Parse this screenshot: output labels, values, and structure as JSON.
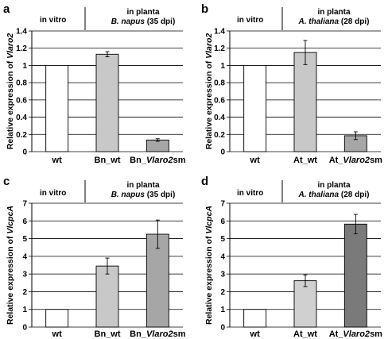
{
  "chart_data": [
    {
      "type": "bar",
      "panel": "a",
      "header": {
        "left": "in vitro",
        "right_line1": "in planta",
        "right_line2_italic": "B. napus",
        "right_line2_rest": " (35 dpi)"
      },
      "ylabel": {
        "plain": "Relative expression of ",
        "italic": "Vlaro2"
      },
      "ylim": [
        0,
        1.4
      ],
      "yticks": [
        "0",
        "0.2",
        "0.4",
        "0.6",
        "0.8",
        "1",
        "1.2",
        "1.4"
      ],
      "grid": true,
      "categories": [
        {
          "plain": "wt",
          "italic": "",
          "suffix": ""
        },
        {
          "plain": "Bn_wt",
          "italic": "",
          "suffix": ""
        },
        {
          "plain": "Bn_",
          "italic": "Vlaro2",
          "suffix": "sm"
        }
      ],
      "values": [
        1.0,
        1.13,
        0.135
      ],
      "errors": [
        0,
        0.03,
        0.015
      ],
      "colors": [
        "#ffffff",
        "#c8c8c8",
        "#a6a6a6"
      ]
    },
    {
      "type": "bar",
      "panel": "b",
      "header": {
        "left": "in vitro",
        "right_line1": "in planta",
        "right_line2_italic": "A. thaliana",
        "right_line2_rest": " (28 dpi)"
      },
      "ylabel": {
        "plain": "Relative expression of ",
        "italic": "Vlaro2"
      },
      "ylim": [
        0,
        1.4
      ],
      "yticks": [
        "0",
        "0.2",
        "0.4",
        "0.6",
        "0.8",
        "1",
        "1.2",
        "1.4"
      ],
      "grid": true,
      "categories": [
        {
          "plain": "wt",
          "italic": "",
          "suffix": ""
        },
        {
          "plain": "At_wt",
          "italic": "",
          "suffix": ""
        },
        {
          "plain": "At_",
          "italic": "Vlaro2",
          "suffix": "sm"
        }
      ],
      "values": [
        1.0,
        1.15,
        0.185
      ],
      "errors": [
        0,
        0.14,
        0.045
      ],
      "colors": [
        "#ffffff",
        "#c8c8c8",
        "#a6a6a6"
      ]
    },
    {
      "type": "bar",
      "panel": "c",
      "header": {
        "left": "in vitro",
        "right_line1": "in planta",
        "right_line2_italic": "B. napus",
        "right_line2_rest": " (35 dpi)"
      },
      "ylabel": {
        "plain": "Relative expression of ",
        "italic": "VlcpcA"
      },
      "ylim": [
        0,
        7
      ],
      "yticks": [
        "0",
        "1",
        "2",
        "3",
        "4",
        "5",
        "6",
        "7"
      ],
      "grid": true,
      "categories": [
        {
          "plain": "wt",
          "italic": "",
          "suffix": ""
        },
        {
          "plain": "Bn_wt",
          "italic": "",
          "suffix": ""
        },
        {
          "plain": "Bn_",
          "italic": "Vlaro2",
          "suffix": "sm"
        }
      ],
      "values": [
        1.0,
        3.45,
        5.25
      ],
      "errors": [
        0,
        0.45,
        0.8
      ],
      "colors": [
        "#ffffff",
        "#c8c8c8",
        "#a6a6a6"
      ]
    },
    {
      "type": "bar",
      "panel": "d",
      "header": {
        "left": "in vitro",
        "right_line1": "in planta",
        "right_line2_italic": "A. thaliana",
        "right_line2_rest": " (28 dpi)"
      },
      "ylabel": {
        "plain": "Relative expression of ",
        "italic": "VlcpcA"
      },
      "ylim": [
        0,
        7
      ],
      "yticks": [
        "0",
        "1",
        "2",
        "3",
        "4",
        "5",
        "6",
        "7"
      ],
      "grid": true,
      "categories": [
        {
          "plain": "wt",
          "italic": "",
          "suffix": ""
        },
        {
          "plain": "At_wt",
          "italic": "",
          "suffix": ""
        },
        {
          "plain": "At_",
          "italic": "Vlaro2",
          "suffix": "sm"
        }
      ],
      "values": [
        1.0,
        2.62,
        5.82
      ],
      "errors": [
        0,
        0.33,
        0.55
      ],
      "colors": [
        "#ffffff",
        "#d0d0d0",
        "#7a7a7a"
      ]
    }
  ]
}
